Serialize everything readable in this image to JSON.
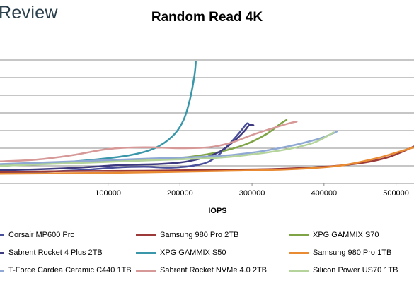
{
  "brand": "Review",
  "chart_data": {
    "type": "line",
    "title": "Random Read 4K",
    "xlabel": "IOPS",
    "ylabel": "",
    "xlim": [
      -50000,
      525000
    ],
    "ylim": [
      0,
      8
    ],
    "x_ticks": [
      100000,
      200000,
      300000,
      400000,
      500000
    ],
    "x_tick_labels": [
      "100000",
      "200000",
      "300000",
      "400000",
      "500000"
    ],
    "y_gridlines": [
      1,
      2,
      3,
      4,
      5,
      6,
      7
    ],
    "grid": true,
    "legend_position": "bottom",
    "series": [
      {
        "name": "Corsair MP600 Pro",
        "color": "#4a4f9c",
        "points": [
          [
            -50000,
            0.6
          ],
          [
            0,
            0.65
          ],
          [
            60000,
            0.75
          ],
          [
            110000,
            0.9
          ],
          [
            150000,
            0.95
          ],
          [
            190000,
            0.9
          ],
          [
            230000,
            1.1
          ],
          [
            250000,
            1.5
          ],
          [
            270000,
            2.3
          ],
          [
            285000,
            3.0
          ],
          [
            293000,
            3.4
          ],
          [
            297000,
            3.3
          ]
        ]
      },
      {
        "name": "Samsung 980 Pro 2TB",
        "color": "#9b3a38",
        "points": [
          [
            -50000,
            0.65
          ],
          [
            50000,
            0.7
          ],
          [
            150000,
            0.72
          ],
          [
            250000,
            0.78
          ],
          [
            330000,
            0.82
          ],
          [
            400000,
            0.95
          ],
          [
            450000,
            1.15
          ],
          [
            490000,
            1.5
          ],
          [
            525000,
            2.1
          ]
        ]
      },
      {
        "name": "XPG GAMMIX S70",
        "color": "#7ea446",
        "points": [
          [
            -50000,
            1.0
          ],
          [
            50000,
            1.2
          ],
          [
            150000,
            1.35
          ],
          [
            200000,
            1.45
          ],
          [
            250000,
            1.75
          ],
          [
            290000,
            2.2
          ],
          [
            320000,
            2.8
          ],
          [
            340000,
            3.4
          ],
          [
            348000,
            3.6
          ]
        ]
      },
      {
        "name": "Sabrent Rocket 4 Plus 2TB",
        "color": "#3e3a80",
        "points": [
          [
            -50000,
            0.75
          ],
          [
            0,
            0.8
          ],
          [
            60000,
            0.9
          ],
          [
            120000,
            1.05
          ],
          [
            170000,
            1.1
          ],
          [
            210000,
            1.25
          ],
          [
            250000,
            1.7
          ],
          [
            275000,
            2.4
          ],
          [
            290000,
            3.0
          ],
          [
            296000,
            3.3
          ],
          [
            302000,
            3.3
          ]
        ]
      },
      {
        "name": "XPG GAMMIX S50",
        "color": "#3a97aa",
        "points": [
          [
            -50000,
            1.0
          ],
          [
            20000,
            1.15
          ],
          [
            80000,
            1.35
          ],
          [
            130000,
            1.6
          ],
          [
            165000,
            2.0
          ],
          [
            190000,
            2.7
          ],
          [
            205000,
            3.6
          ],
          [
            214000,
            4.8
          ],
          [
            220000,
            6.1
          ],
          [
            222000,
            6.9
          ]
        ]
      },
      {
        "name": "Samsung 980 Pro 1TB",
        "color": "#e88b33",
        "points": [
          [
            -50000,
            0.55
          ],
          [
            100000,
            0.6
          ],
          [
            250000,
            0.7
          ],
          [
            350000,
            0.8
          ],
          [
            420000,
            1.0
          ],
          [
            470000,
            1.4
          ],
          [
            500000,
            1.75
          ],
          [
            525000,
            2.05
          ]
        ]
      },
      {
        "name": "T-Force Cardea Ceramic C440 1TB",
        "color": "#8fa9d4",
        "points": [
          [
            -50000,
            1.1
          ],
          [
            50000,
            1.25
          ],
          [
            150000,
            1.4
          ],
          [
            250000,
            1.55
          ],
          [
            300000,
            1.75
          ],
          [
            350000,
            2.1
          ],
          [
            390000,
            2.5
          ],
          [
            410000,
            2.8
          ],
          [
            418000,
            2.95
          ]
        ]
      },
      {
        "name": "Sabrent Rocket NVMe 4.0 2TB",
        "color": "#d69998",
        "points": [
          [
            -50000,
            1.25
          ],
          [
            0,
            1.35
          ],
          [
            50000,
            1.6
          ],
          [
            100000,
            1.95
          ],
          [
            150000,
            2.05
          ],
          [
            200000,
            2.0
          ],
          [
            240000,
            2.05
          ],
          [
            270000,
            2.3
          ],
          [
            300000,
            2.75
          ],
          [
            330000,
            3.15
          ],
          [
            355000,
            3.45
          ],
          [
            362000,
            3.5
          ]
        ]
      },
      {
        "name": "Silicon Power US70 1TB",
        "color": "#b4d49b",
        "points": [
          [
            -50000,
            1.0
          ],
          [
            50000,
            1.15
          ],
          [
            150000,
            1.3
          ],
          [
            250000,
            1.45
          ],
          [
            300000,
            1.65
          ],
          [
            350000,
            1.95
          ],
          [
            385000,
            2.3
          ],
          [
            405000,
            2.7
          ],
          [
            413000,
            2.9
          ]
        ]
      }
    ]
  }
}
